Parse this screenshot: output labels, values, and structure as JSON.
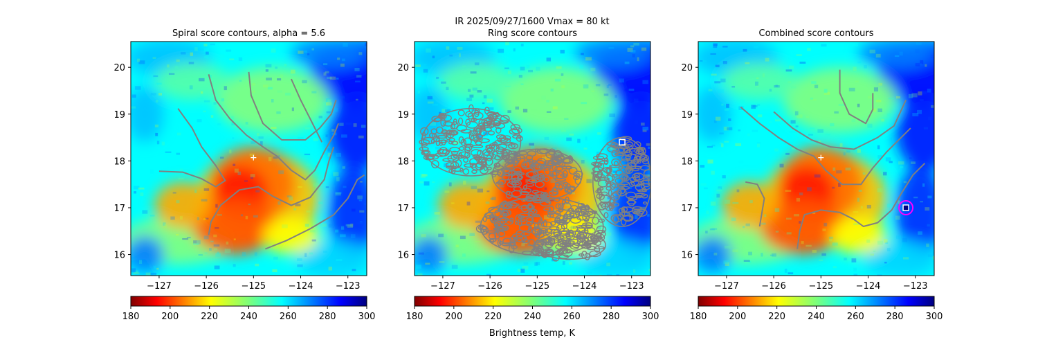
{
  "suptitle": {
    "line1": "IR  2025/09/27/1600    Vmax = 80 kt"
  },
  "colorbar": {
    "label": "Brightness temp, K",
    "range": [
      180,
      300
    ],
    "ticks": [
      "180",
      "200",
      "220",
      "240",
      "260",
      "280",
      "300"
    ],
    "colormap": "jet_r"
  },
  "colors": {
    "contour": "#808080",
    "center_marker": "#ffffff",
    "target_circle": "#ff00ff"
  },
  "chart_data": [
    {
      "type": "heatmap",
      "title": "Spiral score contours, alpha =  5.6",
      "xlim": [
        -127.6,
        -122.6
      ],
      "ylim": [
        15.55,
        20.55
      ],
      "xticks": [
        "−127",
        "−126",
        "−125",
        "−124",
        "−123"
      ],
      "yticks": [
        "16",
        "17",
        "18",
        "19",
        "20"
      ],
      "center": {
        "lon": -125.0,
        "lat": 18.07,
        "marker": "+"
      },
      "contours": [
        [
          [
            -127.0,
            17.78
          ],
          [
            -126.5,
            17.76
          ],
          [
            -126.1,
            17.62
          ],
          [
            -125.8,
            17.45
          ],
          [
            -125.6,
            17.58
          ],
          [
            -125.8,
            17.9
          ],
          [
            -126.1,
            18.3
          ],
          [
            -126.3,
            18.7
          ],
          [
            -126.6,
            19.12
          ]
        ],
        [
          [
            -125.95,
            16.42
          ],
          [
            -125.9,
            16.7
          ],
          [
            -125.7,
            17.05
          ],
          [
            -125.3,
            17.38
          ],
          [
            -124.9,
            17.45
          ],
          [
            -124.6,
            17.25
          ],
          [
            -124.2,
            17.05
          ],
          [
            -123.8,
            17.22
          ],
          [
            -123.5,
            17.6
          ],
          [
            -123.4,
            18.0
          ],
          [
            -123.3,
            18.3
          ]
        ],
        [
          [
            -125.95,
            19.85
          ],
          [
            -125.8,
            19.3
          ],
          [
            -125.5,
            18.9
          ],
          [
            -125.15,
            18.55
          ],
          [
            -124.8,
            18.3
          ],
          [
            -124.5,
            18.1
          ],
          [
            -124.2,
            17.8
          ],
          [
            -123.9,
            17.6
          ],
          [
            -123.7,
            17.8
          ],
          [
            -123.5,
            18.2
          ],
          [
            -123.3,
            18.55
          ],
          [
            -123.2,
            18.8
          ]
        ],
        [
          [
            -125.1,
            19.9
          ],
          [
            -125.05,
            19.4
          ],
          [
            -124.8,
            18.8
          ],
          [
            -124.4,
            18.45
          ],
          [
            -123.9,
            18.45
          ],
          [
            -123.6,
            18.7
          ],
          [
            -123.35,
            19.0
          ],
          [
            -123.25,
            19.3
          ]
        ],
        [
          [
            -124.2,
            19.75
          ],
          [
            -124.0,
            19.3
          ],
          [
            -123.8,
            18.9
          ],
          [
            -123.55,
            18.4
          ]
        ],
        [
          [
            -124.75,
            16.12
          ],
          [
            -124.3,
            16.3
          ],
          [
            -123.8,
            16.55
          ],
          [
            -123.3,
            16.85
          ],
          [
            -123.0,
            17.2
          ],
          [
            -122.8,
            17.6
          ],
          [
            -122.65,
            17.7
          ]
        ]
      ]
    },
    {
      "type": "heatmap",
      "title": "Ring score contours",
      "xlim": [
        -127.6,
        -122.6
      ],
      "ylim": [
        15.55,
        20.55
      ],
      "xticks": [
        "−127",
        "−126",
        "−125",
        "−124",
        "−123"
      ],
      "yticks": [
        "16",
        "17",
        "18",
        "19",
        "20"
      ],
      "target": {
        "lon": -123.2,
        "lat": 18.4,
        "marker": "square"
      },
      "ring_regions": [
        {
          "lon": -126.4,
          "lat": 18.4,
          "rx": 1.05,
          "ry": 0.72
        },
        {
          "lon": -125.0,
          "lat": 17.7,
          "rx": 0.95,
          "ry": 0.55
        },
        {
          "lon": -123.2,
          "lat": 17.55,
          "rx": 0.62,
          "ry": 0.95
        },
        {
          "lon": -124.9,
          "lat": 16.6,
          "rx": 1.3,
          "ry": 0.62
        },
        {
          "lon": -124.3,
          "lat": 16.2,
          "rx": 0.75,
          "ry": 0.3
        }
      ]
    },
    {
      "type": "heatmap",
      "title": "Combined score contours",
      "xlim": [
        -127.6,
        -122.6
      ],
      "ylim": [
        15.55,
        20.55
      ],
      "xticks": [
        "−127",
        "−126",
        "−125",
        "−124",
        "−123"
      ],
      "yticks": [
        "16",
        "17",
        "18",
        "19",
        "20"
      ],
      "center": {
        "lon": -125.0,
        "lat": 18.07,
        "marker": "+"
      },
      "target": {
        "lon": -123.2,
        "lat": 17.0,
        "marker": "square-circle"
      },
      "contours": [
        [
          [
            -126.6,
            17.55
          ],
          [
            -126.35,
            17.5
          ],
          [
            -126.2,
            17.2
          ],
          [
            -126.3,
            16.6
          ]
        ],
        [
          [
            -125.5,
            16.12
          ],
          [
            -125.45,
            16.5
          ],
          [
            -125.35,
            16.85
          ],
          [
            -125.0,
            16.95
          ],
          [
            -124.6,
            16.9
          ],
          [
            -124.3,
            16.75
          ],
          [
            -124.1,
            16.6
          ],
          [
            -123.8,
            16.68
          ],
          [
            -123.5,
            16.95
          ],
          [
            -123.3,
            17.3
          ],
          [
            -123.05,
            17.7
          ],
          [
            -122.8,
            17.95
          ]
        ],
        [
          [
            -126.7,
            19.15
          ],
          [
            -126.3,
            18.8
          ],
          [
            -125.9,
            18.5
          ],
          [
            -125.5,
            18.25
          ],
          [
            -125.15,
            18.1
          ],
          [
            -124.9,
            17.8
          ],
          [
            -124.55,
            17.5
          ],
          [
            -124.15,
            17.5
          ],
          [
            -123.9,
            17.85
          ],
          [
            -123.6,
            18.2
          ],
          [
            -123.3,
            18.5
          ],
          [
            -123.1,
            18.7
          ]
        ],
        [
          [
            -126.0,
            19.05
          ],
          [
            -125.6,
            18.7
          ],
          [
            -125.2,
            18.45
          ],
          [
            -124.8,
            18.3
          ],
          [
            -124.3,
            18.25
          ],
          [
            -123.8,
            18.5
          ],
          [
            -123.45,
            18.75
          ],
          [
            -123.2,
            19.3
          ]
        ],
        [
          [
            -124.6,
            19.95
          ],
          [
            -124.6,
            19.45
          ],
          [
            -124.4,
            19.0
          ],
          [
            -124.05,
            18.8
          ],
          [
            -123.9,
            19.1
          ],
          [
            -123.9,
            19.45
          ]
        ]
      ]
    }
  ]
}
